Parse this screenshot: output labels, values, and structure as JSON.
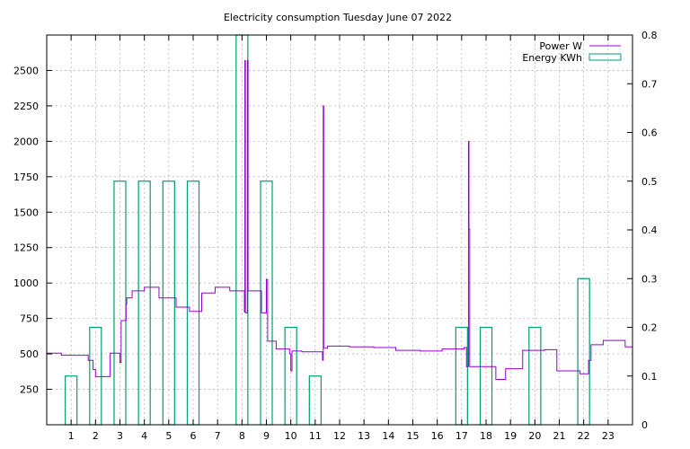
{
  "chart_data": {
    "type": "bar+line",
    "title": "Electricity consumption Tuesday June 07 2022",
    "grid": true,
    "legend_position": "top-right",
    "x_axis": {
      "range": [
        0,
        24
      ],
      "ticks": [
        1,
        2,
        3,
        4,
        5,
        6,
        7,
        8,
        9,
        10,
        11,
        12,
        13,
        14,
        15,
        16,
        17,
        18,
        19,
        20,
        21,
        22,
        23
      ]
    },
    "y_left": {
      "range": [
        0,
        2750
      ],
      "ticks": [
        250,
        500,
        750,
        1000,
        1250,
        1500,
        1750,
        2000,
        2250,
        2500
      ]
    },
    "y_right": {
      "range": [
        0,
        0.8
      ],
      "ticks": [
        "0",
        "0.1",
        "0.2",
        "0.3",
        "0.4",
        "0.5",
        "0.6",
        "0.7",
        "0.8"
      ]
    },
    "series": [
      {
        "name": "Energy KWh",
        "kind": "bar",
        "color": "#009e73",
        "axis": "right",
        "points": [
          {
            "x": 1,
            "value": 0.1
          },
          {
            "x": 2,
            "value": 0.2
          },
          {
            "x": 3,
            "value": 0.5
          },
          {
            "x": 4,
            "value": 0.5
          },
          {
            "x": 5,
            "value": 0.5
          },
          {
            "x": 6,
            "value": 0.5
          },
          {
            "x": 8,
            "value": 0.8
          },
          {
            "x": 9,
            "value": 0.5
          },
          {
            "x": 10,
            "value": 0.2
          },
          {
            "x": 11,
            "value": 0.1
          },
          {
            "x": 17,
            "value": 0.2
          },
          {
            "x": 18,
            "value": 0.2
          },
          {
            "x": 20,
            "value": 0.2
          },
          {
            "x": 22,
            "value": 0.3
          }
        ]
      },
      {
        "name": "Power W",
        "kind": "step-line",
        "color": "#9400d3",
        "axis": "left",
        "points": [
          [
            0.0,
            505
          ],
          [
            0.6,
            505
          ],
          [
            0.6,
            490
          ],
          [
            1.7,
            490
          ],
          [
            1.7,
            455
          ],
          [
            1.9,
            455
          ],
          [
            1.9,
            390
          ],
          [
            2.0,
            390
          ],
          [
            2.0,
            340
          ],
          [
            2.6,
            340
          ],
          [
            2.6,
            505
          ],
          [
            3.0,
            505
          ],
          [
            3.0,
            440
          ],
          [
            3.05,
            440
          ],
          [
            3.05,
            735
          ],
          [
            3.25,
            735
          ],
          [
            3.25,
            850
          ],
          [
            3.28,
            850
          ],
          [
            3.28,
            895
          ],
          [
            3.5,
            895
          ],
          [
            3.5,
            945
          ],
          [
            4.0,
            945
          ],
          [
            4.0,
            970
          ],
          [
            4.6,
            970
          ],
          [
            4.6,
            895
          ],
          [
            5.3,
            895
          ],
          [
            5.3,
            830
          ],
          [
            5.85,
            830
          ],
          [
            5.85,
            800
          ],
          [
            6.35,
            800
          ],
          [
            6.35,
            930
          ],
          [
            6.9,
            930
          ],
          [
            6.9,
            970
          ],
          [
            7.5,
            970
          ],
          [
            7.5,
            945
          ],
          [
            8.1,
            945
          ],
          [
            8.1,
            795
          ],
          [
            8.12,
            795
          ],
          [
            8.12,
            2570
          ],
          [
            8.14,
            2570
          ],
          [
            8.14,
            790
          ],
          [
            8.22,
            790
          ],
          [
            8.22,
            2570
          ],
          [
            8.25,
            2570
          ],
          [
            8.25,
            945
          ],
          [
            8.8,
            945
          ],
          [
            8.8,
            790
          ],
          [
            9.0,
            790
          ],
          [
            9.0,
            1025
          ],
          [
            9.05,
            1025
          ],
          [
            9.05,
            590
          ],
          [
            9.4,
            590
          ],
          [
            9.4,
            535
          ],
          [
            9.95,
            535
          ],
          [
            9.95,
            500
          ],
          [
            10.0,
            500
          ],
          [
            10.0,
            380
          ],
          [
            10.05,
            380
          ],
          [
            10.05,
            520
          ],
          [
            10.45,
            520
          ],
          [
            10.45,
            515
          ],
          [
            11.3,
            515
          ],
          [
            11.3,
            455
          ],
          [
            11.33,
            455
          ],
          [
            11.33,
            2250
          ],
          [
            11.35,
            2250
          ],
          [
            11.35,
            540
          ],
          [
            11.5,
            540
          ],
          [
            11.5,
            555
          ],
          [
            12.4,
            555
          ],
          [
            12.4,
            550
          ],
          [
            13.4,
            550
          ],
          [
            13.4,
            545
          ],
          [
            14.3,
            545
          ],
          [
            14.3,
            525
          ],
          [
            15.3,
            525
          ],
          [
            15.3,
            520
          ],
          [
            16.2,
            520
          ],
          [
            16.2,
            535
          ],
          [
            17.1,
            535
          ],
          [
            17.1,
            545
          ],
          [
            17.2,
            545
          ],
          [
            17.2,
            410
          ],
          [
            17.28,
            410
          ],
          [
            17.28,
            2000
          ],
          [
            17.3,
            2000
          ],
          [
            17.3,
            1380
          ],
          [
            17.33,
            1380
          ],
          [
            17.33,
            410
          ],
          [
            18.4,
            410
          ],
          [
            18.4,
            320
          ],
          [
            18.8,
            320
          ],
          [
            18.8,
            395
          ],
          [
            19.5,
            395
          ],
          [
            19.5,
            525
          ],
          [
            20.4,
            525
          ],
          [
            20.4,
            530
          ],
          [
            20.9,
            530
          ],
          [
            20.9,
            380
          ],
          [
            21.85,
            380
          ],
          [
            21.85,
            360
          ],
          [
            22.2,
            360
          ],
          [
            22.2,
            455
          ],
          [
            22.3,
            455
          ],
          [
            22.3,
            565
          ],
          [
            22.8,
            565
          ],
          [
            22.8,
            595
          ],
          [
            23.7,
            595
          ],
          [
            23.7,
            550
          ],
          [
            24.0,
            550
          ]
        ]
      }
    ]
  }
}
